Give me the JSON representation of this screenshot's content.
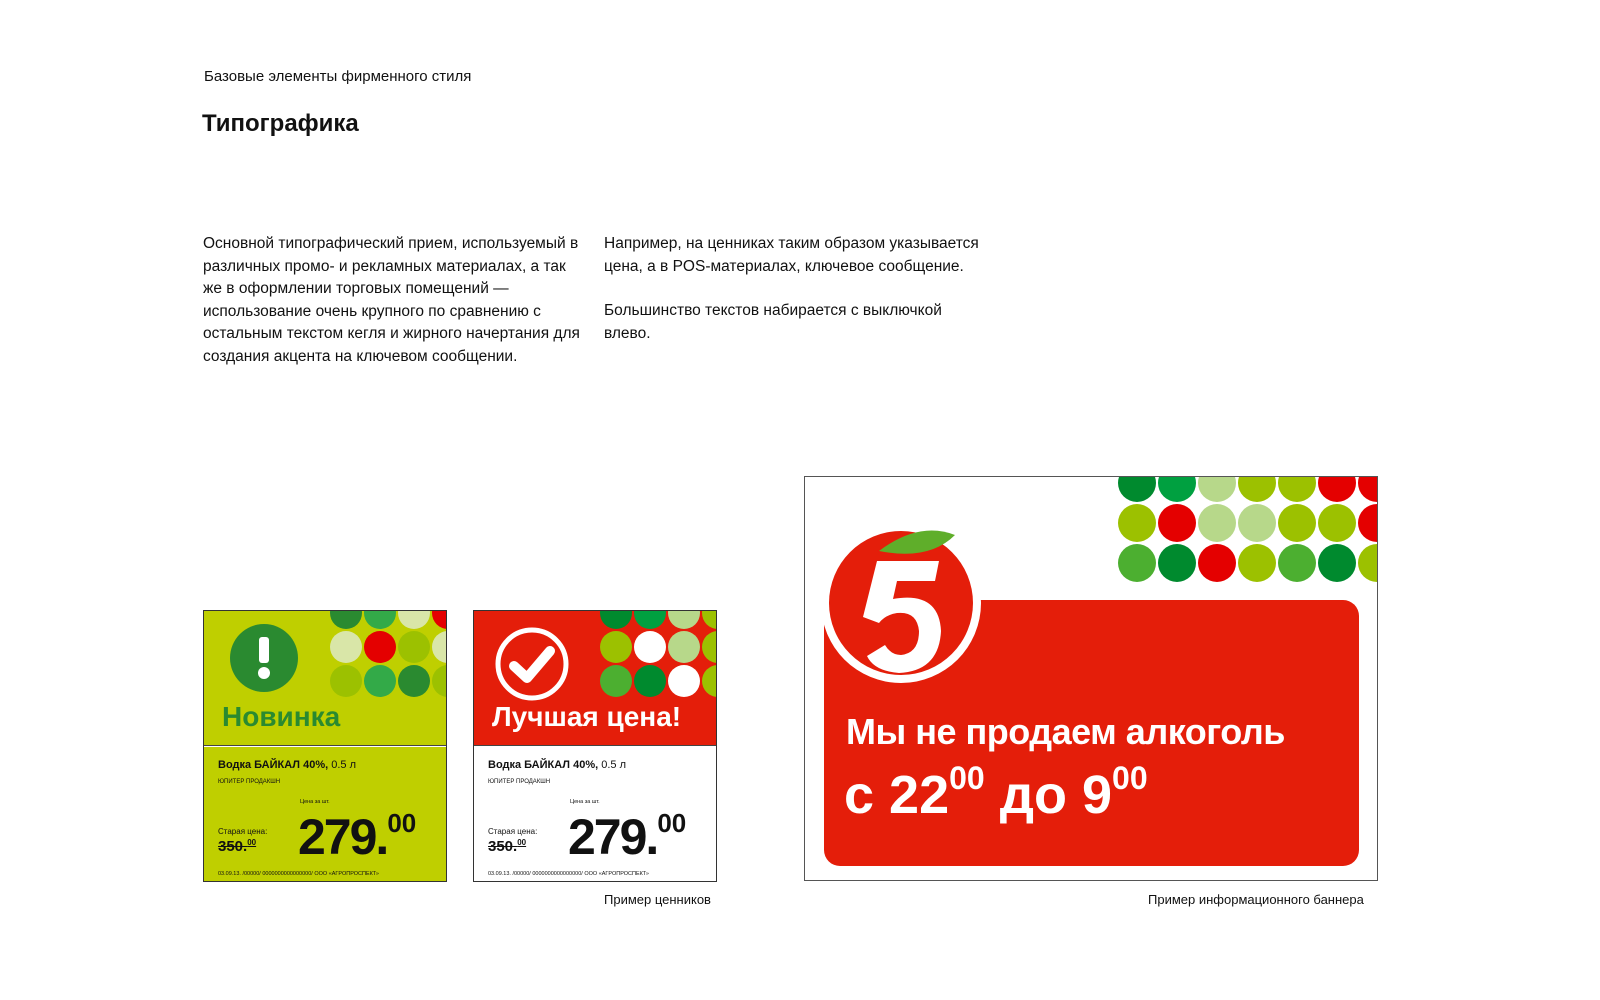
{
  "header": {
    "kicker": "Базовые элементы фирменного стиля",
    "title": "Типографика"
  },
  "text": {
    "col1": "Основной типографический прием, используемый в различных промо- и рекламных материалах, а так же в оформлении торговых помещений — использование очень крупного по сравнению с остальным текстом кегля и жирного начертания для создания акцента на ключевом сообщении.",
    "col2_p1": "Например, на ценниках таким образом указывается цена, а в POS-материалах, ключевое сообщение.",
    "col2_p2": "Большинство текстов набирается с выключкой влево."
  },
  "colors": {
    "lime": "#bfcf00",
    "dark_green": "#2a8a30",
    "red": "#e41e0a",
    "white": "#ffffff"
  },
  "price_tags": [
    {
      "headline": "Новинка",
      "icon": "exclamation-icon",
      "bg": "#bfcf00",
      "headline_color": "#2a8a30",
      "product": "Водка БАЙКАЛ 40%,",
      "volume": "0.5 л",
      "maker": "ЮПИТЕР ПРОДАКШН",
      "per_unit": "Цена за шт.",
      "old_label": "Старая цена:",
      "old_price": "350.",
      "old_cents": "00",
      "price": "279.",
      "cents": "00",
      "footer": "03.09.13. /00000/ 0000000000000000/ ООО «АГРОПРОСПЕКТ»",
      "dots": [
        [
          "#2a8a30",
          "#33aa48",
          "#d9e6a8",
          "#e40000"
        ],
        [
          "#d9e6a8",
          "#e40000",
          "#9cc100",
          "#d9e6a8"
        ],
        [
          "#9cc100",
          "#33aa48",
          "#2a8a30",
          "#9cc100"
        ]
      ]
    },
    {
      "headline": "Лучшая цена!",
      "icon": "checkmark-circle-icon",
      "bg": "#e41e0a",
      "headline_color": "#ffffff",
      "product": "Водка БАЙКАЛ 40%,",
      "volume": "0.5 л",
      "maker": "ЮПИТЕР ПРОДАКШН",
      "per_unit": "Цена за шт.",
      "old_label": "Старая цена:",
      "old_price": "350.",
      "old_cents": "00",
      "price": "279.",
      "cents": "00",
      "footer": "03.09.13. /00000/ 0000000000000000/ ООО «АГРОПРОСПЕКТ»",
      "dots": [
        [
          "#008a2e",
          "#00a040",
          "#b7d88a",
          "#9cc100"
        ],
        [
          "#9cc100",
          "#ffffff",
          "#b7d88a",
          "#9cc100"
        ],
        [
          "#4caf30",
          "#008a2e",
          "#ffffff",
          "#9cc100"
        ]
      ]
    }
  ],
  "price_tags_caption": "Пример ценников",
  "banner": {
    "line1": "Мы не продаем алкоголь",
    "pre": "с 22",
    "m1": "00",
    "mid": " до 9",
    "m2": "00",
    "logo": "pyaterochka-logo",
    "dots": [
      [
        "#008a2e",
        "#00a040",
        "#b7d88a",
        "#9cc100",
        "#9cc100",
        "#e40000",
        "#e40000"
      ],
      [
        "#9cc100",
        "#e40000",
        "#b7d88a",
        "#b7d88a",
        "#9cc100",
        "#9cc100",
        "#e40000"
      ],
      [
        "#4caf30",
        "#008a2e",
        "#e40000",
        "#9cc100",
        "#4caf30",
        "#008a2e",
        "#9cc100"
      ]
    ]
  },
  "banner_caption": "Пример информационного баннера"
}
